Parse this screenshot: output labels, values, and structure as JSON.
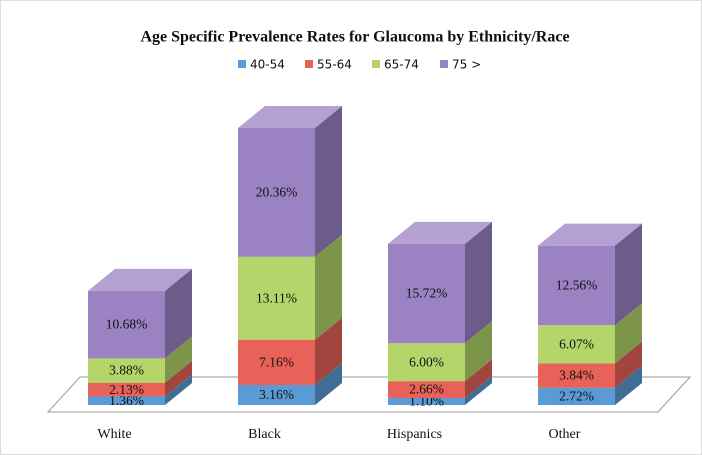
{
  "chart_data": {
    "type": "bar3d_stacked",
    "title": "Age Specific Prevalence Rates for Glaucoma  by Ethnicity/Race",
    "categories": [
      "White",
      "Black",
      "Hispanics",
      "Other"
    ],
    "series": [
      {
        "name": "40-54",
        "color": "#5b9bd5",
        "values": [
          1.36,
          3.16,
          1.1,
          2.72
        ],
        "value_labels": [
          "1.36%",
          "3.16%",
          "1.10%",
          "2.72%"
        ]
      },
      {
        "name": "55-64",
        "color": "#e8625a",
        "values": [
          2.13,
          7.16,
          2.66,
          3.84
        ],
        "value_labels": [
          "2.13%",
          "7.16%",
          "2.66%",
          "3.84%"
        ]
      },
      {
        "name": "65-74",
        "color": "#b3d56a",
        "values": [
          3.88,
          13.11,
          6.0,
          6.07
        ],
        "value_labels": [
          "3.88%",
          "13.11%",
          "6.00%",
          "6.07%"
        ]
      },
      {
        "name": "75 >",
        "color": "#9b82c3",
        "values": [
          10.68,
          20.36,
          15.72,
          12.56
        ],
        "value_labels": [
          "10.68%",
          "20.36%",
          "15.72%",
          "12.56%"
        ]
      }
    ],
    "legend": "top"
  }
}
